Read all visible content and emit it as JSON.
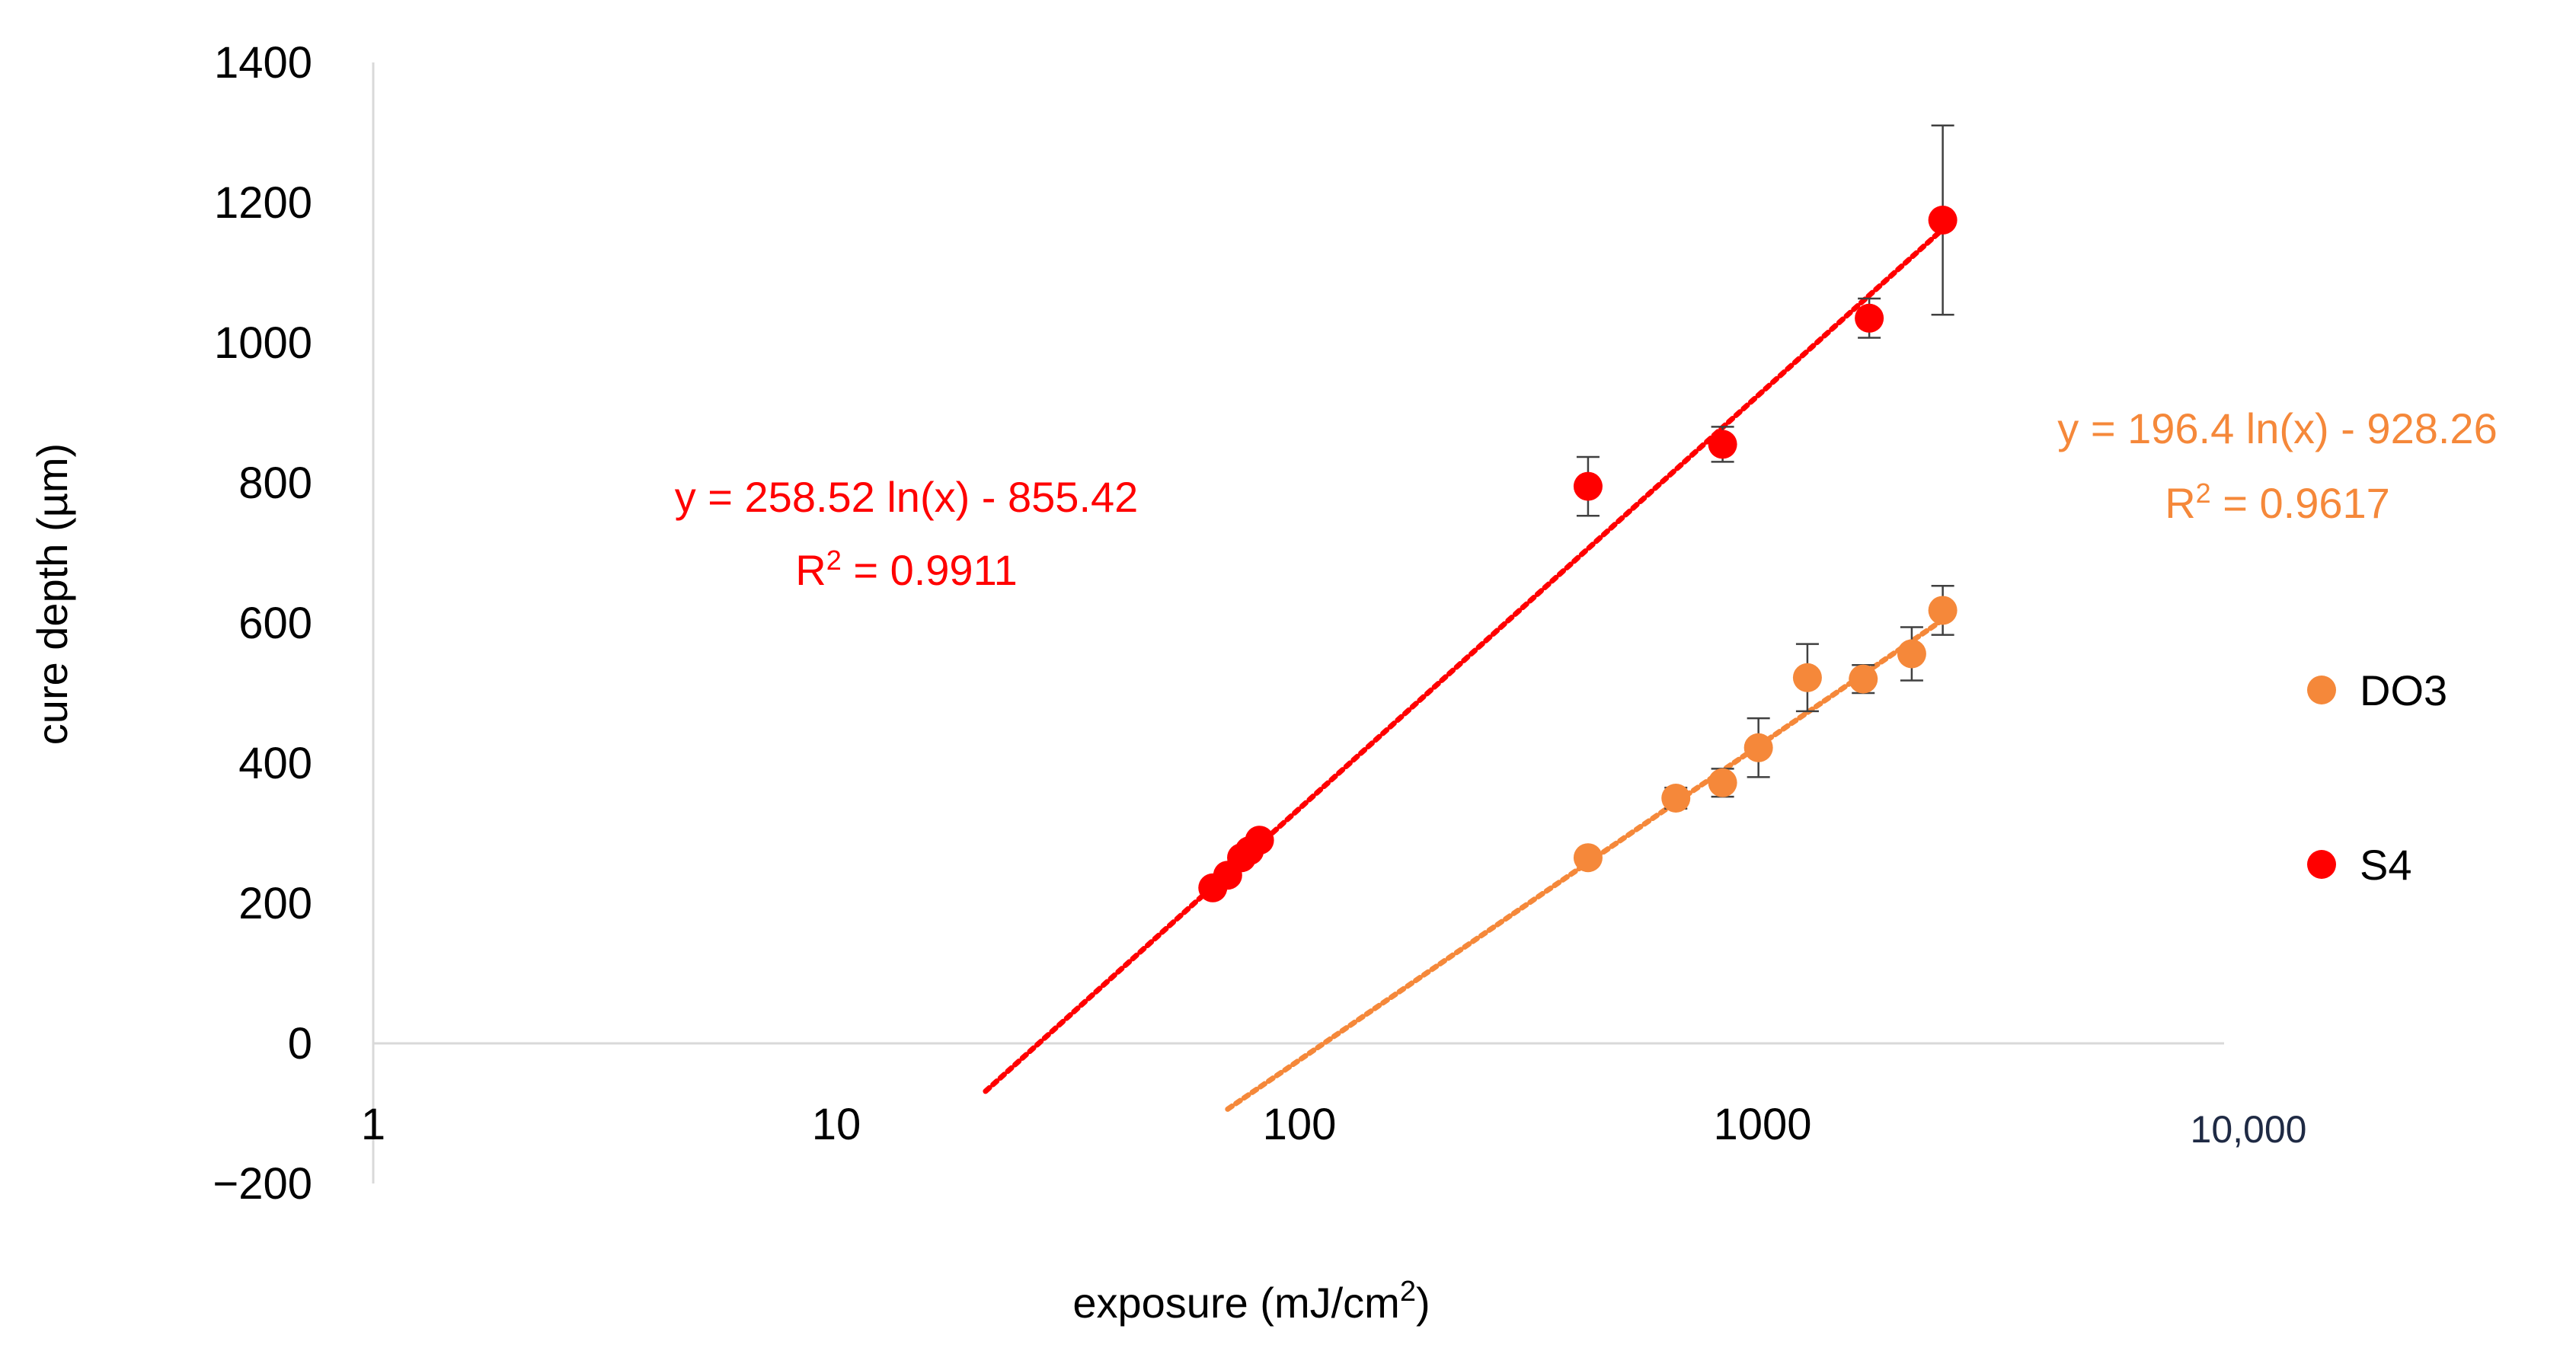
{
  "chart_data": {
    "type": "scatter",
    "title": "",
    "xlabel": "exposure (mJ/cm",
    "xlabel_sup": "2",
    "xlabel_tail": ")",
    "ylabel": "cure depth (µm)",
    "x_scale": "log",
    "xlim": [
      1,
      10000
    ],
    "ylim": [
      -200,
      1400
    ],
    "x_ticks": [
      {
        "value": 1,
        "label": "1"
      },
      {
        "value": 10,
        "label": "10"
      },
      {
        "value": 100,
        "label": "100"
      },
      {
        "value": 1000,
        "label": "1000"
      },
      {
        "value": 10000,
        "label": "10,000"
      }
    ],
    "y_ticks": [
      {
        "value": 1400,
        "label": "1400"
      },
      {
        "value": 1200,
        "label": "1200"
      },
      {
        "value": 1000,
        "label": "1000"
      },
      {
        "value": 800,
        "label": "800"
      },
      {
        "value": 600,
        "label": "600"
      },
      {
        "value": 400,
        "label": "400"
      },
      {
        "value": 200,
        "label": "200"
      },
      {
        "value": 0,
        "label": "0"
      },
      {
        "value": -200,
        "label": "−200"
      }
    ],
    "grid": false,
    "legend_position": "right",
    "series": [
      {
        "name": "DO3",
        "color": "#F5883A",
        "points": [
          {
            "x": 420,
            "y": 265,
            "err": 0
          },
          {
            "x": 650,
            "y": 350,
            "err": 15
          },
          {
            "x": 820,
            "y": 372,
            "err": 20
          },
          {
            "x": 980,
            "y": 422,
            "err": 42
          },
          {
            "x": 1250,
            "y": 522,
            "err": 48
          },
          {
            "x": 1650,
            "y": 520,
            "err": 20
          },
          {
            "x": 2100,
            "y": 556,
            "err": 38
          },
          {
            "x": 2450,
            "y": 618,
            "err": 35
          }
        ],
        "trendline": {
          "a": 196.4,
          "b": -928.26,
          "x_from": 70,
          "x_to": 2450
        },
        "equation": "y = 196.4 ln(x) - 928.26",
        "r2_label": "R",
        "r2_sup": "2",
        "r2_value": " = 0.9617"
      },
      {
        "name": "S4",
        "color": "#FF0000",
        "points": [
          {
            "x": 65,
            "y": 222,
            "err": 0
          },
          {
            "x": 70,
            "y": 240,
            "err": 0
          },
          {
            "x": 75,
            "y": 265,
            "err": 0
          },
          {
            "x": 78,
            "y": 275,
            "err": 0
          },
          {
            "x": 82,
            "y": 290,
            "err": 0
          },
          {
            "x": 420,
            "y": 795,
            "err": 42
          },
          {
            "x": 820,
            "y": 855,
            "err": 25
          },
          {
            "x": 1700,
            "y": 1035,
            "err": 28
          },
          {
            "x": 2450,
            "y": 1175,
            "err": 135
          }
        ],
        "trendline": {
          "a": 258.52,
          "b": -855.42,
          "x_from": 21,
          "x_to": 2450
        },
        "equation": "y = 258.52 ln(x) - 855.42",
        "r2_label": "R",
        "r2_sup": "2",
        "r2_value": " = 0.9911"
      }
    ]
  },
  "colors": {
    "axis": "#D9D9D9",
    "tick_text": "#000000",
    "error_bar": "#404040",
    "x_last_tick": "#1F2A44"
  }
}
